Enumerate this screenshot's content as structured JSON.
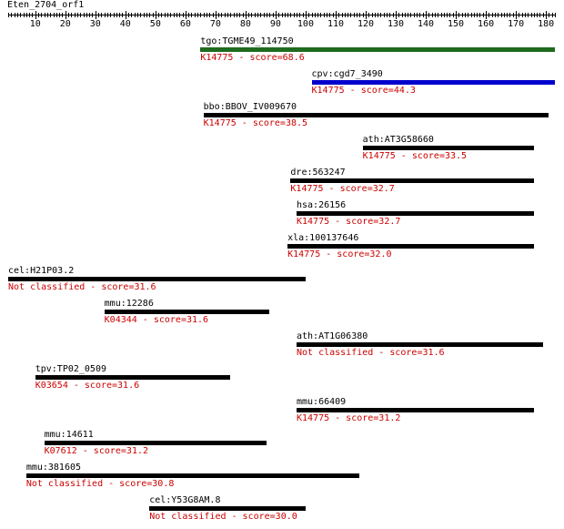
{
  "query": "Eten_2704_orf1",
  "ruler": {
    "min": 1,
    "max": 183,
    "ticks": [
      10,
      20,
      30,
      40,
      50,
      60,
      70,
      80,
      90,
      100,
      110,
      120,
      130,
      140,
      150,
      160,
      170,
      180
    ]
  },
  "colors": {
    "text": "#000000",
    "annotation": "#cc0000",
    "default_bar": "#000000"
  },
  "hits": [
    {
      "name": "tgo:TGME49_114750",
      "annotation": "K14775 - score=68.6",
      "start": 65,
      "end": 183,
      "color": "#1f6b1f"
    },
    {
      "name": "cpv:cgd7_3490",
      "annotation": "K14775 - score=44.3",
      "start": 102,
      "end": 183,
      "color": "#0000cc"
    },
    {
      "name": "bbo:BBOV_IV009670",
      "annotation": "K14775 - score=38.5",
      "start": 66,
      "end": 181
    },
    {
      "name": "ath:AT3G58660",
      "annotation": "K14775 - score=33.5",
      "start": 119,
      "end": 176
    },
    {
      "name": "dre:563247",
      "annotation": "K14775 - score=32.7",
      "start": 95,
      "end": 176
    },
    {
      "name": "hsa:26156",
      "annotation": "K14775 - score=32.7",
      "start": 97,
      "end": 176
    },
    {
      "name": "xla:100137646",
      "annotation": "K14775 - score=32.0",
      "start": 94,
      "end": 176
    },
    {
      "name": "cel:H21P03.2",
      "annotation": "Not classified - score=31.6",
      "start": 1,
      "end": 100
    },
    {
      "name": "mmu:12286",
      "annotation": "K04344 - score=31.6",
      "start": 33,
      "end": 88
    },
    {
      "name": "ath:AT1G06380",
      "annotation": "Not classified - score=31.6",
      "start": 97,
      "end": 179
    },
    {
      "name": "tpv:TP02_0509",
      "annotation": "K03654 - score=31.6",
      "start": 10,
      "end": 75
    },
    {
      "name": "mmu:66409",
      "annotation": "K14775 - score=31.2",
      "start": 97,
      "end": 176
    },
    {
      "name": "mmu:14611",
      "annotation": "K07612 - score=31.2",
      "start": 13,
      "end": 87
    },
    {
      "name": "mmu:381605",
      "annotation": "Not classified - score=30.8",
      "start": 7,
      "end": 118
    },
    {
      "name": "cel:Y53G8AM.8",
      "annotation": "Not classified - score=30.0",
      "start": 48,
      "end": 100
    }
  ]
}
